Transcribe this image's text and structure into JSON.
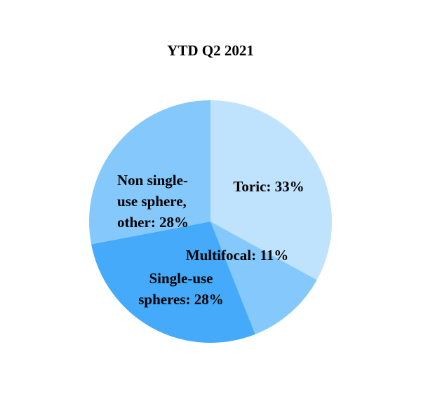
{
  "chart_data": {
    "type": "pie",
    "title": "YTD Q2 2021",
    "values": [
      33,
      11,
      28,
      28
    ],
    "value_labels": [
      [
        "Toric: 33%"
      ],
      [
        "Multifocal: 11%"
      ],
      [
        "Single-use",
        "spheres: 28%"
      ],
      [
        "Non single-",
        "use sphere,",
        "other: 28%"
      ]
    ],
    "colors": [
      "#bfe3fd",
      "#85c8fb",
      "#44aaf9",
      "#85c8fb"
    ]
  }
}
